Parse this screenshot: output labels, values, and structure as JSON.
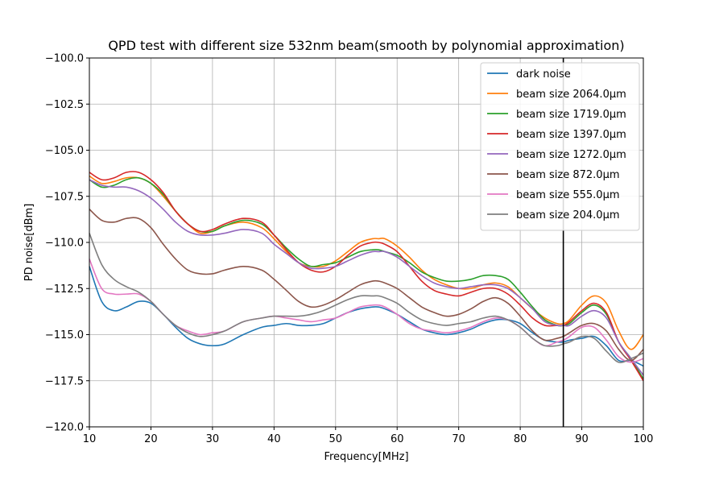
{
  "chart_data": {
    "type": "line",
    "title": "QPD test with different size 532nm beam(smooth by polynomial approximation)",
    "xlabel": "Frequency[MHz]",
    "ylabel": "PD noise[dBm]",
    "xlim": [
      10,
      100
    ],
    "ylim": [
      -120,
      -100
    ],
    "xticks": [
      "10",
      "20",
      "30",
      "40",
      "50",
      "60",
      "70",
      "80",
      "90",
      "100"
    ],
    "yticks": [
      "−100.0",
      "−102.5",
      "−105.0",
      "−107.5",
      "−110.0",
      "−112.5",
      "−115.0",
      "−117.5",
      "−120.0"
    ],
    "grid": true,
    "legend_position": "top-right",
    "vertical_line_x": 87,
    "vertical_line_color": "#000000",
    "x": [
      10,
      12,
      14,
      16,
      18,
      20,
      22,
      24,
      26,
      28,
      30,
      32,
      35,
      38,
      40,
      42,
      44,
      46,
      48,
      50,
      52,
      54,
      56,
      57,
      58,
      60,
      62,
      64,
      66,
      68,
      70,
      72,
      74,
      76,
      78,
      80,
      82,
      84,
      86,
      87,
      88,
      90,
      92,
      94,
      96,
      98,
      100
    ],
    "series": [
      {
        "name": "dark noise",
        "color": "#1f77b4",
        "values": [
          -111.3,
          -113.2,
          -113.7,
          -113.5,
          -113.2,
          -113.3,
          -113.9,
          -114.6,
          -115.2,
          -115.5,
          -115.6,
          -115.5,
          -115.0,
          -114.6,
          -114.5,
          -114.4,
          -114.5,
          -114.5,
          -114.4,
          -114.1,
          -113.8,
          -113.6,
          -113.5,
          -113.5,
          -113.6,
          -113.9,
          -114.3,
          -114.7,
          -114.9,
          -115.0,
          -114.9,
          -114.7,
          -114.4,
          -114.2,
          -114.2,
          -114.4,
          -114.9,
          -115.3,
          -115.4,
          -115.4,
          -115.3,
          -115.2,
          -115.1,
          -115.6,
          -116.4,
          -116.4,
          -116.7
        ]
      },
      {
        "name": "beam size 2064.0$\\mu$m",
        "color": "#ff7f0e",
        "values": [
          -106.4,
          -106.8,
          -106.7,
          -106.5,
          -106.5,
          -106.8,
          -107.5,
          -108.3,
          -109.0,
          -109.5,
          -109.4,
          -109.1,
          -108.9,
          -109.2,
          -109.8,
          -110.5,
          -111.1,
          -111.3,
          -111.3,
          -111.0,
          -110.5,
          -110.0,
          -109.8,
          -109.8,
          -109.8,
          -110.2,
          -110.8,
          -111.5,
          -112.0,
          -112.3,
          -112.5,
          -112.5,
          -112.3,
          -112.2,
          -112.4,
          -113.0,
          -113.6,
          -114.1,
          -114.4,
          -114.4,
          -114.2,
          -113.4,
          -112.9,
          -113.3,
          -114.8,
          -115.8,
          -115.0
        ]
      },
      {
        "name": "beam size 1719.0$\\mu$m",
        "color": "#2ca02c",
        "values": [
          -106.6,
          -107.0,
          -106.9,
          -106.6,
          -106.5,
          -106.8,
          -107.4,
          -108.3,
          -109.0,
          -109.4,
          -109.4,
          -109.1,
          -108.8,
          -109.0,
          -109.6,
          -110.3,
          -110.9,
          -111.3,
          -111.2,
          -111.1,
          -110.8,
          -110.5,
          -110.4,
          -110.4,
          -110.5,
          -110.7,
          -111.1,
          -111.6,
          -111.9,
          -112.1,
          -112.1,
          -112.0,
          -111.8,
          -111.8,
          -112.0,
          -112.7,
          -113.5,
          -114.2,
          -114.5,
          -114.5,
          -114.4,
          -113.8,
          -113.4,
          -113.9,
          -115.4,
          -116.3,
          -117.4
        ]
      },
      {
        "name": "beam size 1397.0$\\mu$m",
        "color": "#d62728",
        "values": [
          -106.2,
          -106.6,
          -106.5,
          -106.2,
          -106.2,
          -106.6,
          -107.3,
          -108.3,
          -109.0,
          -109.4,
          -109.3,
          -109.0,
          -108.7,
          -108.9,
          -109.6,
          -110.4,
          -111.1,
          -111.5,
          -111.6,
          -111.3,
          -110.7,
          -110.2,
          -110.0,
          -110.0,
          -110.1,
          -110.5,
          -111.3,
          -112.1,
          -112.6,
          -112.8,
          -112.9,
          -112.7,
          -112.5,
          -112.5,
          -112.8,
          -113.4,
          -114.1,
          -114.5,
          -114.5,
          -114.5,
          -114.3,
          -113.7,
          -113.3,
          -113.8,
          -115.4,
          -116.4,
          -117.5
        ]
      },
      {
        "name": "beam size 1272.0$\\mu$m",
        "color": "#9467bd",
        "values": [
          -106.6,
          -106.9,
          -107.0,
          -107.0,
          -107.2,
          -107.6,
          -108.2,
          -108.9,
          -109.4,
          -109.6,
          -109.6,
          -109.5,
          -109.3,
          -109.5,
          -110.1,
          -110.6,
          -111.1,
          -111.4,
          -111.4,
          -111.3,
          -111.0,
          -110.7,
          -110.5,
          -110.5,
          -110.5,
          -110.8,
          -111.3,
          -111.8,
          -112.2,
          -112.4,
          -112.5,
          -112.4,
          -112.3,
          -112.3,
          -112.5,
          -113.0,
          -113.6,
          -114.3,
          -114.5,
          -114.5,
          -114.5,
          -114.0,
          -113.7,
          -114.1,
          -115.4,
          -116.3,
          -117.2
        ]
      },
      {
        "name": "beam size 872.0$\\mu$m",
        "color": "#8c564b",
        "values": [
          -108.2,
          -108.8,
          -108.9,
          -108.7,
          -108.7,
          -109.2,
          -110.1,
          -110.9,
          -111.5,
          -111.7,
          -111.7,
          -111.5,
          -111.3,
          -111.5,
          -112.0,
          -112.6,
          -113.2,
          -113.5,
          -113.4,
          -113.1,
          -112.7,
          -112.3,
          -112.1,
          -112.1,
          -112.2,
          -112.5,
          -113.0,
          -113.5,
          -113.8,
          -114.0,
          -113.9,
          -113.6,
          -113.2,
          -113.0,
          -113.3,
          -114.0,
          -114.8,
          -115.3,
          -115.2,
          -115.1,
          -114.9,
          -114.5,
          -114.4,
          -114.8,
          -115.8,
          -116.4,
          -115.8
        ]
      },
      {
        "name": "beam size 555.0$\\mu$m",
        "color": "#e377c2",
        "values": [
          -110.9,
          -112.5,
          -112.8,
          -112.8,
          -112.8,
          -113.2,
          -113.9,
          -114.5,
          -114.8,
          -115.0,
          -114.9,
          -114.8,
          -114.3,
          -114.1,
          -114.0,
          -114.1,
          -114.2,
          -114.3,
          -114.2,
          -114.1,
          -113.8,
          -113.5,
          -113.4,
          -113.4,
          -113.5,
          -113.9,
          -114.4,
          -114.7,
          -114.8,
          -114.9,
          -114.8,
          -114.6,
          -114.3,
          -114.1,
          -114.2,
          -114.6,
          -115.2,
          -115.6,
          -115.4,
          -115.3,
          -115.1,
          -114.6,
          -114.6,
          -115.3,
          -116.2,
          -116.5,
          -116.3
        ]
      },
      {
        "name": "beam size 204.0$\\mu$m",
        "color": "#7f7f7f",
        "values": [
          -109.5,
          -111.2,
          -112.0,
          -112.4,
          -112.7,
          -113.2,
          -113.9,
          -114.5,
          -114.9,
          -115.1,
          -115.0,
          -114.8,
          -114.3,
          -114.1,
          -114.0,
          -114.0,
          -114.0,
          -113.9,
          -113.7,
          -113.4,
          -113.1,
          -112.9,
          -112.9,
          -112.9,
          -113.0,
          -113.3,
          -113.8,
          -114.2,
          -114.4,
          -114.5,
          -114.4,
          -114.3,
          -114.1,
          -114.0,
          -114.2,
          -114.6,
          -115.2,
          -115.6,
          -115.6,
          -115.5,
          -115.4,
          -115.1,
          -115.2,
          -115.9,
          -116.5,
          -116.3,
          -116.0
        ]
      }
    ]
  }
}
